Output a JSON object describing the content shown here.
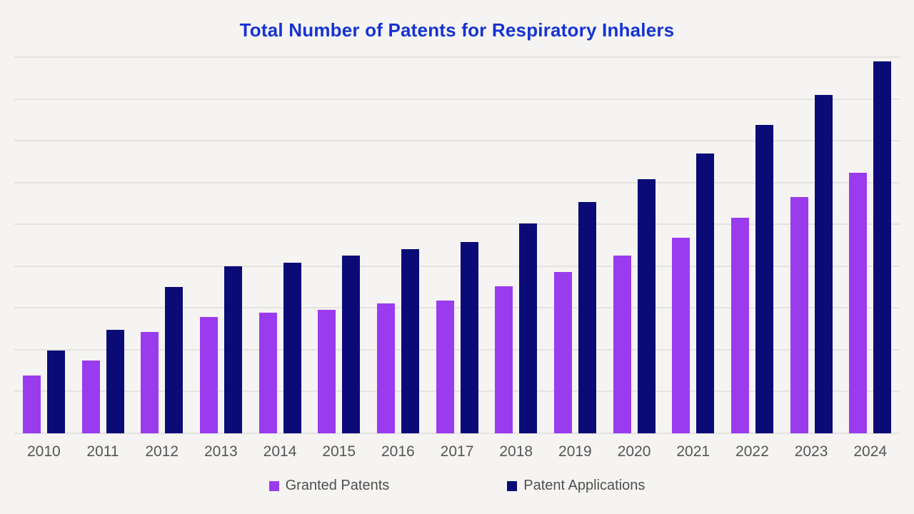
{
  "page": {
    "background_color": "#f5f4f2",
    "title_color": "#1633d1",
    "axis_label_color": "#555555",
    "gridline_color": "#e4e3e0",
    "legend_text_color": "#4f4f4f"
  },
  "chart_data": {
    "type": "bar",
    "title": "Total Number of Patents for Respiratory Inhalers",
    "xlabel": "",
    "ylabel": "",
    "categories": [
      "2010",
      "2011",
      "2012",
      "2013",
      "2014",
      "2015",
      "2016",
      "2017",
      "2018",
      "2019",
      "2020",
      "2021",
      "2022",
      "2023",
      "2024"
    ],
    "series": [
      {
        "name": "Granted Patents",
        "color": "#9b3bee",
        "values": [
          69,
          87,
          121,
          139,
          144,
          148,
          155,
          159,
          176,
          193,
          213,
          234,
          258,
          283,
          312
        ]
      },
      {
        "name": "Patent Applications",
        "color": "#0b0b78",
        "values": [
          99,
          124,
          175,
          200,
          204,
          213,
          220,
          229,
          251,
          277,
          304,
          335,
          369,
          405,
          445
        ]
      }
    ],
    "ylim": [
      0,
      450
    ],
    "gridline_step": 50,
    "grid": "horizontal",
    "y_axis_labels_visible": false,
    "legend_position": "bottom"
  }
}
